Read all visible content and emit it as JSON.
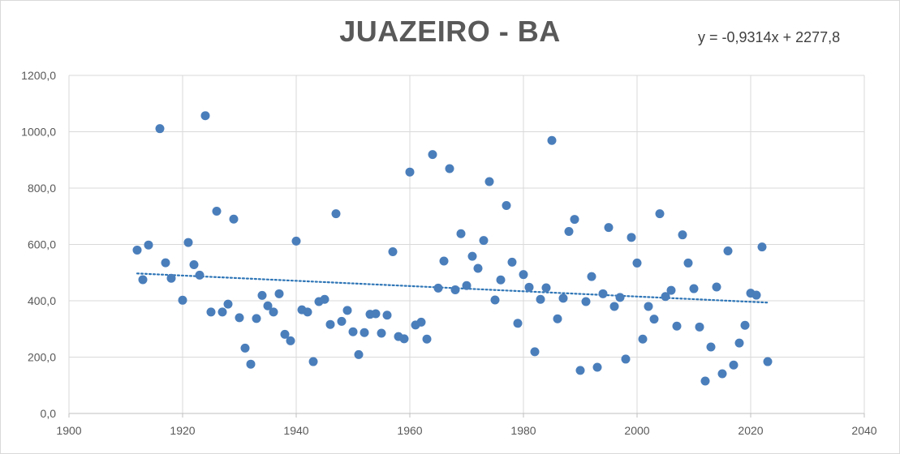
{
  "chart_data": {
    "type": "scatter",
    "title": "JUAZEIRO - BA",
    "annotations": [
      "y = -0,9314x + 2277,8"
    ],
    "xlabel": "",
    "ylabel": "",
    "xlim": [
      1900,
      2040
    ],
    "ylim": [
      0,
      1200
    ],
    "x_ticks": [
      "1900",
      "1920",
      "1940",
      "1960",
      "1980",
      "2000",
      "2020",
      "2040"
    ],
    "y_ticks": [
      "0,0",
      "200,0",
      "400,0",
      "600,0",
      "800,0",
      "1000,0",
      "1200,0"
    ],
    "grid": true,
    "legend": "none",
    "marker_color": "#4a7ebb",
    "trendline": {
      "type": "linear",
      "slope": -0.9314,
      "intercept": 2277.8,
      "style": "dotted",
      "color": "#2e75b6",
      "x_range": [
        1912,
        2023
      ]
    },
    "series": [
      {
        "points": [
          [
            1912,
            580
          ],
          [
            1913,
            475
          ],
          [
            1914,
            598
          ],
          [
            1916,
            1011
          ],
          [
            1917,
            535
          ],
          [
            1918,
            480
          ],
          [
            1920,
            402
          ],
          [
            1921,
            607
          ],
          [
            1922,
            528
          ],
          [
            1923,
            491
          ],
          [
            1924,
            1057
          ],
          [
            1925,
            360
          ],
          [
            1926,
            718
          ],
          [
            1927,
            360
          ],
          [
            1928,
            388
          ],
          [
            1929,
            690
          ],
          [
            1930,
            340
          ],
          [
            1931,
            232
          ],
          [
            1932,
            175
          ],
          [
            1933,
            337
          ],
          [
            1934,
            419
          ],
          [
            1935,
            382
          ],
          [
            1936,
            360
          ],
          [
            1937,
            425
          ],
          [
            1938,
            281
          ],
          [
            1939,
            258
          ],
          [
            1940,
            612
          ],
          [
            1941,
            368
          ],
          [
            1942,
            360
          ],
          [
            1943,
            184
          ],
          [
            1944,
            397
          ],
          [
            1945,
            405
          ],
          [
            1946,
            316
          ],
          [
            1947,
            709
          ],
          [
            1948,
            327
          ],
          [
            1949,
            366
          ],
          [
            1950,
            290
          ],
          [
            1951,
            209
          ],
          [
            1952,
            287
          ],
          [
            1953,
            352
          ],
          [
            1954,
            354
          ],
          [
            1955,
            285
          ],
          [
            1956,
            349
          ],
          [
            1957,
            574
          ],
          [
            1958,
            273
          ],
          [
            1959,
            265
          ],
          [
            1960,
            857
          ],
          [
            1961,
            314
          ],
          [
            1962,
            324
          ],
          [
            1963,
            264
          ],
          [
            1964,
            919
          ],
          [
            1965,
            445
          ],
          [
            1966,
            541
          ],
          [
            1967,
            869
          ],
          [
            1968,
            439
          ],
          [
            1969,
            638
          ],
          [
            1970,
            454
          ],
          [
            1971,
            558
          ],
          [
            1972,
            515
          ],
          [
            1973,
            614
          ],
          [
            1974,
            823
          ],
          [
            1975,
            403
          ],
          [
            1976,
            474
          ],
          [
            1977,
            738
          ],
          [
            1978,
            537
          ],
          [
            1979,
            320
          ],
          [
            1980,
            493
          ],
          [
            1981,
            448
          ],
          [
            1982,
            219
          ],
          [
            1983,
            405
          ],
          [
            1984,
            446
          ],
          [
            1985,
            969
          ],
          [
            1986,
            336
          ],
          [
            1987,
            409
          ],
          [
            1988,
            646
          ],
          [
            1989,
            689
          ],
          [
            1990,
            153
          ],
          [
            1991,
            397
          ],
          [
            1992,
            486
          ],
          [
            1993,
            164
          ],
          [
            1994,
            425
          ],
          [
            1995,
            660
          ],
          [
            1996,
            380
          ],
          [
            1997,
            412
          ],
          [
            1998,
            193
          ],
          [
            1999,
            625
          ],
          [
            2000,
            534
          ],
          [
            2001,
            264
          ],
          [
            2002,
            380
          ],
          [
            2003,
            335
          ],
          [
            2004,
            709
          ],
          [
            2005,
            415
          ],
          [
            2006,
            437
          ],
          [
            2007,
            310
          ],
          [
            2008,
            634
          ],
          [
            2009,
            534
          ],
          [
            2010,
            443
          ],
          [
            2011,
            307
          ],
          [
            2012,
            115
          ],
          [
            2013,
            236
          ],
          [
            2014,
            449
          ],
          [
            2015,
            141
          ],
          [
            2016,
            577
          ],
          [
            2017,
            172
          ],
          [
            2018,
            250
          ],
          [
            2019,
            313
          ],
          [
            2020,
            427
          ],
          [
            2021,
            420
          ],
          [
            2022,
            591
          ],
          [
            2023,
            184
          ]
        ]
      }
    ]
  }
}
